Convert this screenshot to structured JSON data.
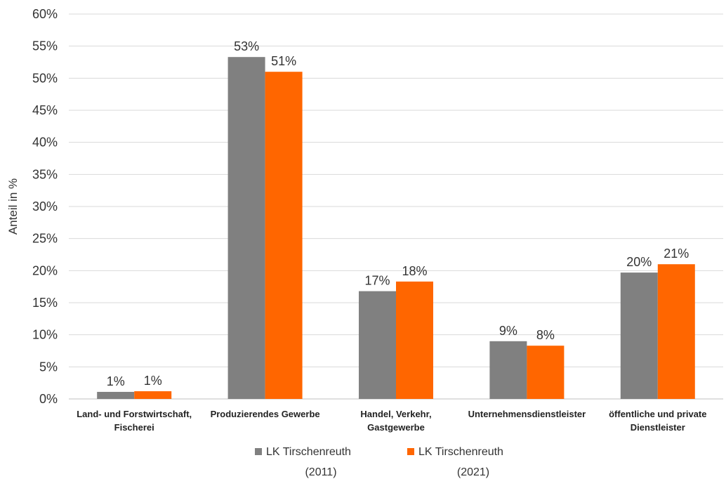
{
  "chart_data": {
    "type": "bar",
    "title": "",
    "xlabel": "",
    "ylabel": "Anteil in %",
    "ylim": [
      0,
      60
    ],
    "yticks": [
      0,
      5,
      10,
      15,
      20,
      25,
      30,
      35,
      40,
      45,
      50,
      55,
      60
    ],
    "ytick_labels": [
      "0%",
      "5%",
      "10%",
      "15%",
      "20%",
      "25%",
      "30%",
      "35%",
      "40%",
      "45%",
      "50%",
      "55%",
      "60%"
    ],
    "grid": true,
    "legend_position": "bottom",
    "categories": [
      [
        "Land- und Forstwirtschaft,",
        "Fischerei"
      ],
      [
        "Produzierendes Gewerbe"
      ],
      [
        "Handel, Verkehr,",
        "Gastgewerbe"
      ],
      [
        "Unternehmensdienstleister"
      ],
      [
        "öffentliche und private",
        "Dienstleister"
      ]
    ],
    "series": [
      {
        "name_lines": [
          "LK Tirschenreuth",
          "(2011)"
        ],
        "color": "#808080",
        "values": [
          1.1,
          53.3,
          16.8,
          9.0,
          19.7
        ],
        "labels": [
          "1%",
          "53%",
          "17%",
          "9%",
          "20%"
        ]
      },
      {
        "name_lines": [
          "LK Tirschenreuth",
          "(2021)"
        ],
        "color": "#ff6600",
        "values": [
          1.2,
          51.0,
          18.3,
          8.3,
          21.0
        ],
        "labels": [
          "1%",
          "51%",
          "18%",
          "8%",
          "21%"
        ]
      }
    ]
  }
}
